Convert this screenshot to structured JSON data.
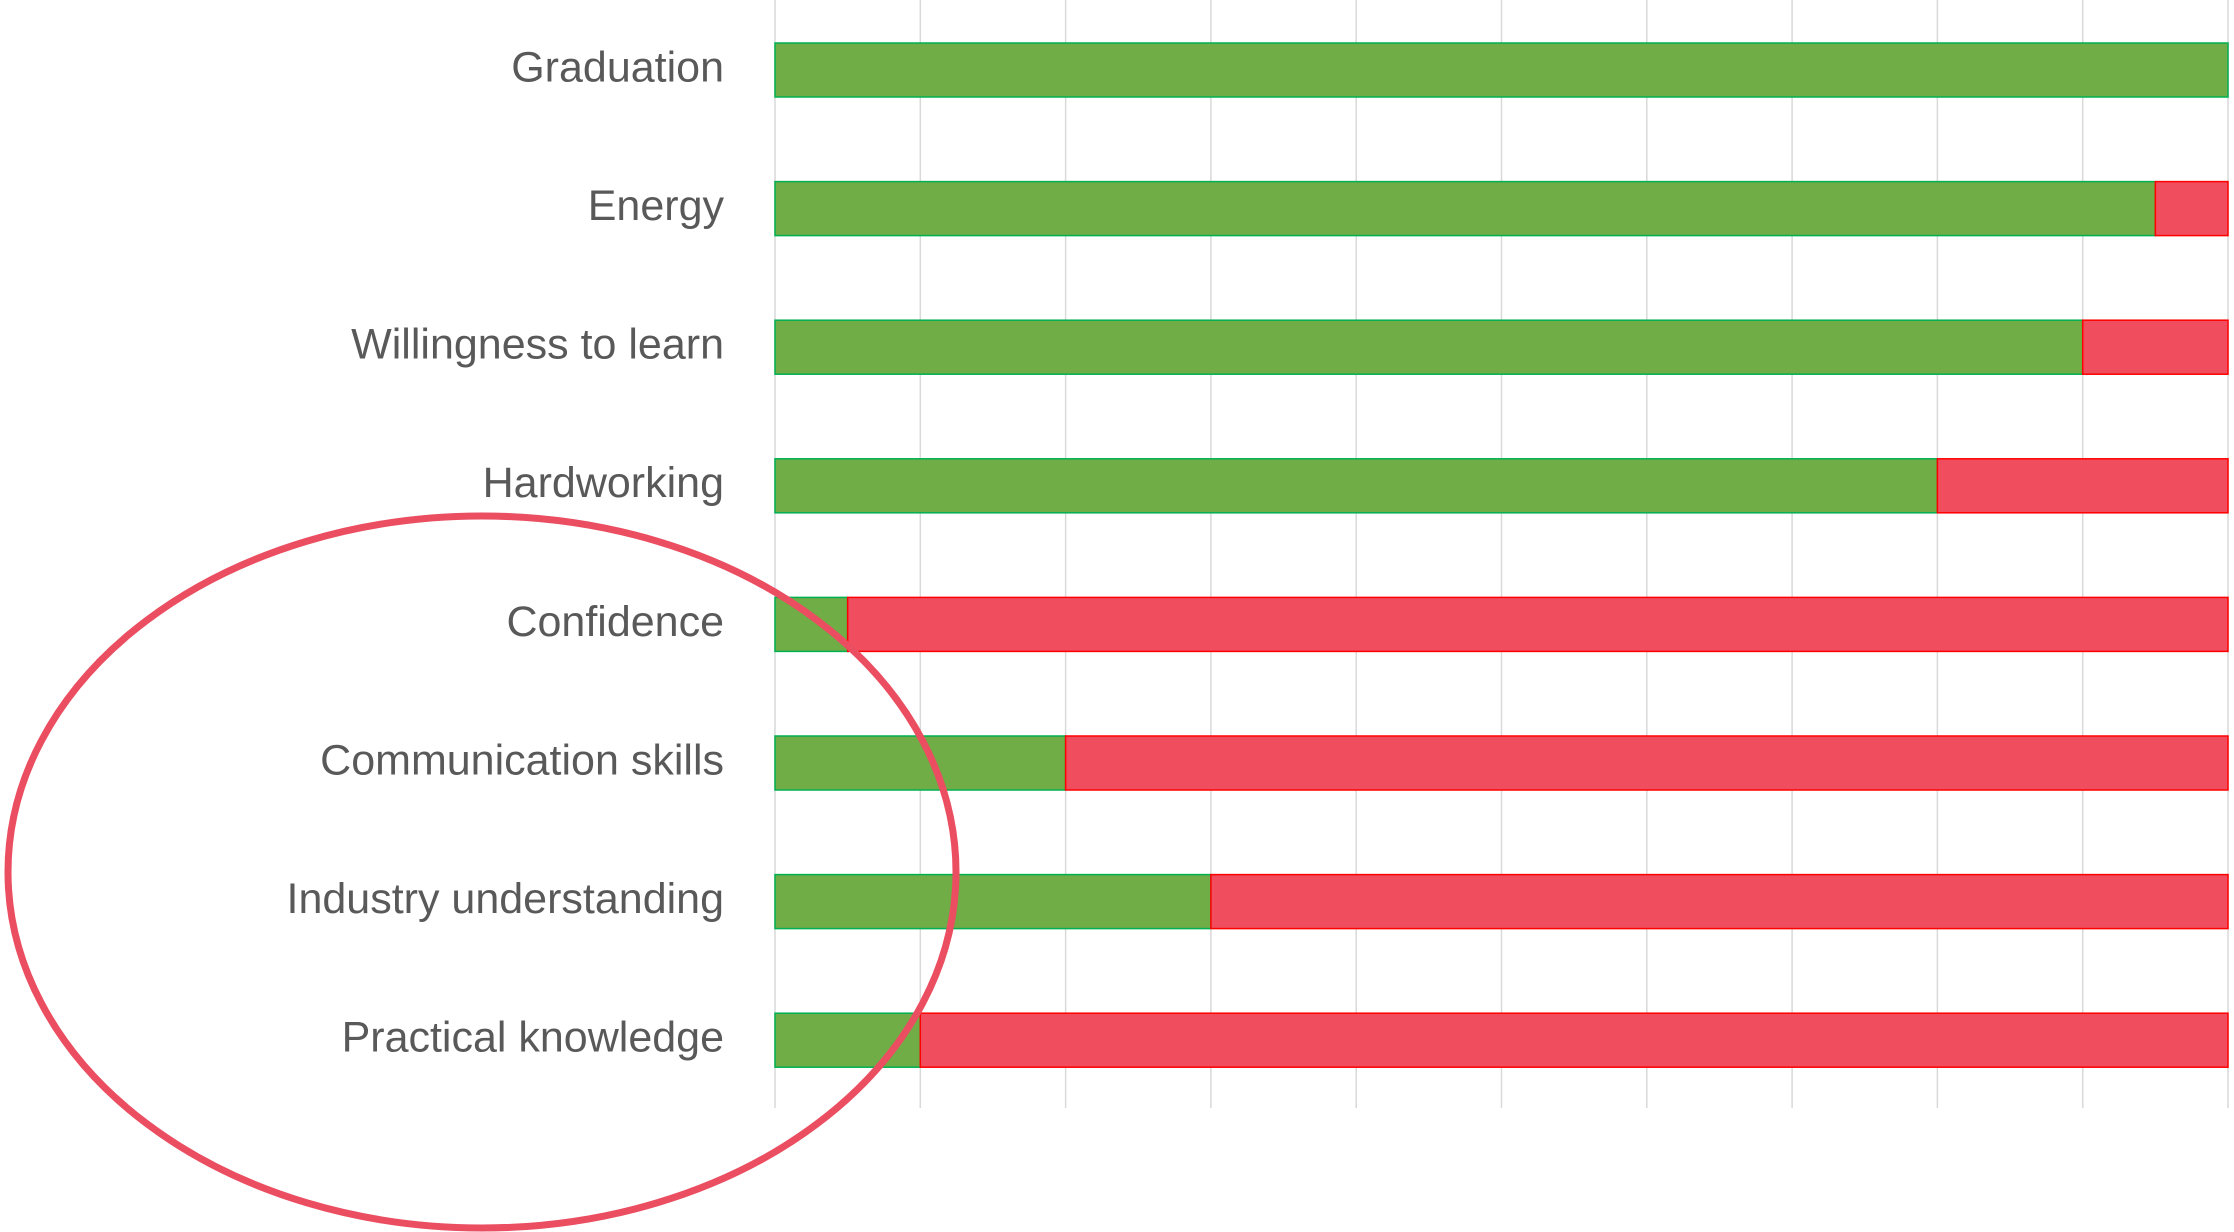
{
  "chart_data": {
    "type": "stacked-bar",
    "orientation": "horizontal",
    "categories": [
      "Graduation",
      "Energy",
      "Willingness to learn",
      "Hardworking",
      "Confidence",
      "Communication skills",
      "Industry understanding",
      "Practical knowledge"
    ],
    "series": [
      {
        "color": "#70ad47",
        "values": [
          100,
          95,
          90,
          80,
          5,
          20,
          30,
          10
        ]
      },
      {
        "color": "#f04e5e",
        "values": [
          0,
          5,
          10,
          20,
          95,
          80,
          70,
          90
        ]
      }
    ],
    "xlim": [
      0,
      100
    ],
    "xticks": [
      0,
      10,
      20,
      30,
      40,
      50,
      60,
      70,
      80,
      90,
      100
    ],
    "grid": true
  }
}
